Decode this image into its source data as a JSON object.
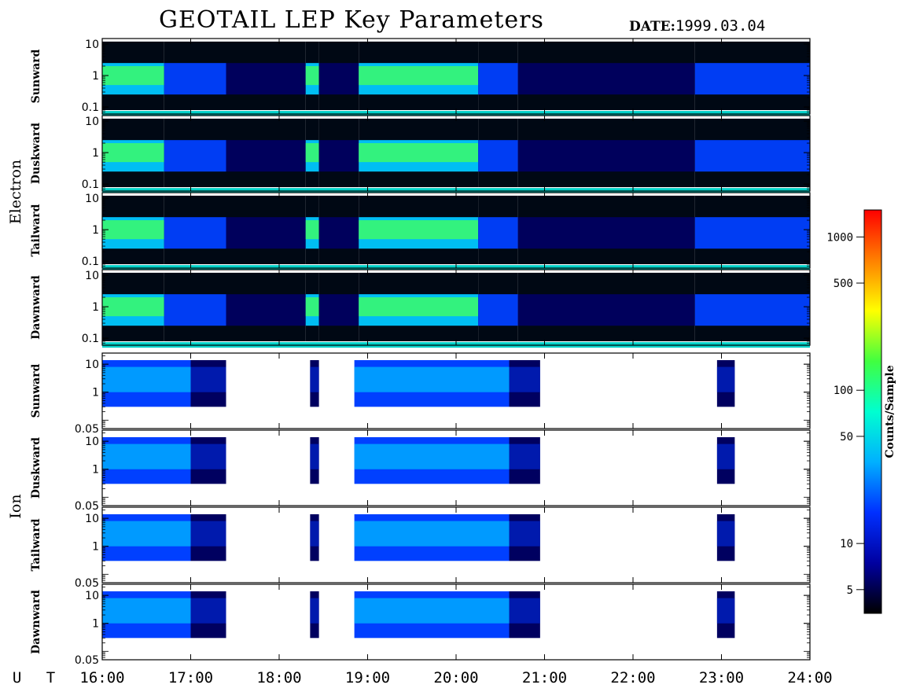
{
  "title": "GEOTAIL LEP Key Parameters",
  "date_label": "DATE:",
  "date_value": "1999.03.04",
  "ut_label": "U T",
  "colorbar": {
    "label": "Counts/Sample",
    "ticks": [
      {
        "value": 5,
        "label": "5"
      },
      {
        "value": 10,
        "label": "10"
      },
      {
        "value": 50,
        "label": "50"
      },
      {
        "value": 100,
        "label": "100"
      },
      {
        "value": 500,
        "label": "500"
      },
      {
        "value": 1000,
        "label": "1000"
      }
    ],
    "range": [
      3.5,
      1500
    ],
    "scale": "log",
    "colors": [
      "#000000",
      "#0000a0",
      "#0030ff",
      "#00b0ff",
      "#00ffd0",
      "#40ff40",
      "#ffff00",
      "#ff8000",
      "#ff0000"
    ]
  },
  "chart_data": {
    "type": "heatmap",
    "title": "GEOTAIL LEP Key Parameters",
    "date": "1999.03.04",
    "x_label": "U T",
    "x_range": [
      16,
      24
    ],
    "x_ticks": [
      "16:00",
      "17:00",
      "18:00",
      "19:00",
      "20:00",
      "21:00",
      "22:00",
      "23:00",
      "24:00"
    ],
    "groups": [
      {
        "name": "Electron",
        "y_scale": "log",
        "y_range": [
          0.06,
          15
        ],
        "y_ticks": [
          "10",
          "1",
          "0.1"
        ],
        "panels": [
          "Sunward",
          "Duskward",
          "Tailward",
          "Dawnward"
        ],
        "activity": [
          {
            "start": 16.0,
            "end": 16.7,
            "level": "high"
          },
          {
            "start": 16.7,
            "end": 17.4,
            "level": "medium"
          },
          {
            "start": 17.4,
            "end": 18.3,
            "level": "low"
          },
          {
            "start": 18.3,
            "end": 18.45,
            "level": "high"
          },
          {
            "start": 18.45,
            "end": 18.9,
            "level": "low"
          },
          {
            "start": 18.9,
            "end": 20.25,
            "level": "high"
          },
          {
            "start": 20.25,
            "end": 20.7,
            "level": "medium"
          },
          {
            "start": 20.7,
            "end": 22.7,
            "level": "low"
          },
          {
            "start": 22.7,
            "end": 24.0,
            "level": "medium"
          }
        ]
      },
      {
        "name": "Ion",
        "y_scale": "log",
        "y_range": [
          0.05,
          25
        ],
        "y_ticks": [
          "10",
          "1",
          "0.05"
        ],
        "panels": [
          "Sunward",
          "Duskward",
          "Tailward",
          "Dawnward"
        ],
        "activity": [
          {
            "start": 16.0,
            "end": 17.0,
            "level": "medium"
          },
          {
            "start": 17.0,
            "end": 17.4,
            "level": "low"
          },
          {
            "start": 18.35,
            "end": 18.45,
            "level": "low"
          },
          {
            "start": 18.85,
            "end": 20.6,
            "level": "medium"
          },
          {
            "start": 20.6,
            "end": 20.95,
            "level": "low"
          },
          {
            "start": 22.95,
            "end": 23.15,
            "level": "low"
          }
        ]
      }
    ]
  }
}
